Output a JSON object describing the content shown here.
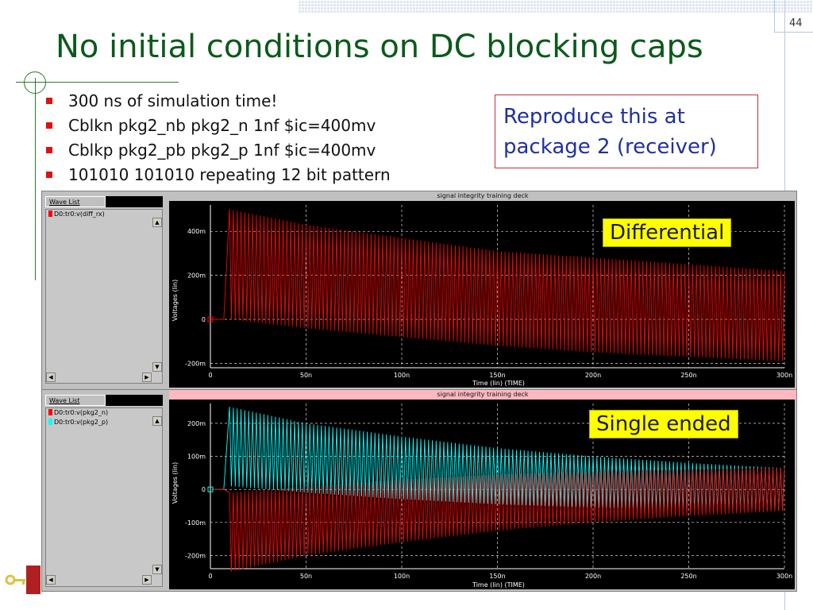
{
  "slide": {
    "number": "44",
    "title": "No initial conditions on DC blocking caps",
    "bullets": [
      "300 ns of simulation time!",
      "Cblkn pkg2_nb pkg2_n 1nf $ic=400mv",
      "Cblkp pkg2_pb pkg2_p 1nf $ic=400mv",
      "101010 101010 repeating 12 bit pattern"
    ],
    "callout": [
      "Reproduce this at",
      "package 2 (receiver)"
    ],
    "note_top": "Differential",
    "note_bottom": "Single ended",
    "colors": {
      "title": "#0a5a1a",
      "bullet": "#e01010",
      "callout_text": "#2030a0",
      "note_bg": "#ffff00"
    }
  },
  "panels": [
    {
      "title": "signal integrity training deck",
      "wave_list_label": "Wave List",
      "waves": [
        {
          "label": "D0:tr0:v(diff_rx)",
          "color": "#ff0000"
        }
      ],
      "y_axis_label": "Voltages (lin)",
      "x_axis_label": "Time (lin) (TIME)",
      "y_ticks": [
        "400m",
        "200m",
        "0",
        "-200m"
      ],
      "x_ticks": [
        "0",
        "50n",
        "100n",
        "150n",
        "200n",
        "250n",
        "300n"
      ]
    },
    {
      "title": "signal integrity training deck",
      "wave_list_label": "Wave List",
      "waves": [
        {
          "label": "D0:tr0:v(pkg2_n)",
          "color": "#ff0000"
        },
        {
          "label": "D0:tr0:v(pkg2_p)",
          "color": "#00ffff"
        }
      ],
      "y_axis_label": "Voltages (lin)",
      "x_axis_label": "Time (lin) (TIME)",
      "y_ticks": [
        "200m",
        "100m",
        "0",
        "-100m",
        "-200m"
      ],
      "x_ticks": [
        "0",
        "50n",
        "100n",
        "150n",
        "200n",
        "250n",
        "300n"
      ]
    }
  ],
  "chart_data": [
    {
      "type": "line",
      "title": "signal integrity training deck",
      "xlabel": "Time (lin) (TIME)",
      "ylabel": "Voltages (lin)",
      "xlim": [
        0,
        300
      ],
      "ylim": [
        -220,
        520
      ],
      "grid": true,
      "series": [
        {
          "name": "D0:tr0:v(diff_rx)",
          "color": "#ff0000",
          "envelope": {
            "t": [
              7,
              10,
              50,
              100,
              150,
              200,
              250,
              300
            ],
            "upper": [
              0,
              500,
              430,
              370,
              310,
              280,
              250,
              220
            ],
            "lower": [
              0,
              0,
              -40,
              -80,
              -120,
              -150,
              -170,
              -190
            ]
          }
        }
      ]
    },
    {
      "type": "line",
      "title": "signal integrity training deck",
      "xlabel": "Time (lin) (TIME)",
      "ylabel": "Voltages (lin)",
      "xlim": [
        0,
        300
      ],
      "ylim": [
        -240,
        260
      ],
      "grid": true,
      "series": [
        {
          "name": "D0:tr0:v(pkg2_p)",
          "color": "#00ffff",
          "envelope": {
            "t": [
              7,
              10,
              50,
              100,
              150,
              200,
              250,
              300
            ],
            "upper": [
              0,
              250,
              200,
              160,
              125,
              100,
              80,
              65
            ],
            "lower": [
              0,
              10,
              -10,
              -30,
              -45,
              -55,
              -60,
              -65
            ]
          }
        },
        {
          "name": "D0:tr0:v(pkg2_n)",
          "color": "#ff0000",
          "envelope": {
            "t": [
              7,
              10,
              50,
              100,
              150,
              200,
              250,
              300
            ],
            "upper": [
              0,
              -10,
              10,
              30,
              45,
              55,
              60,
              65
            ],
            "lower": [
              0,
              -250,
              -200,
              -160,
              -125,
              -100,
              -80,
              -65
            ]
          }
        }
      ]
    }
  ]
}
